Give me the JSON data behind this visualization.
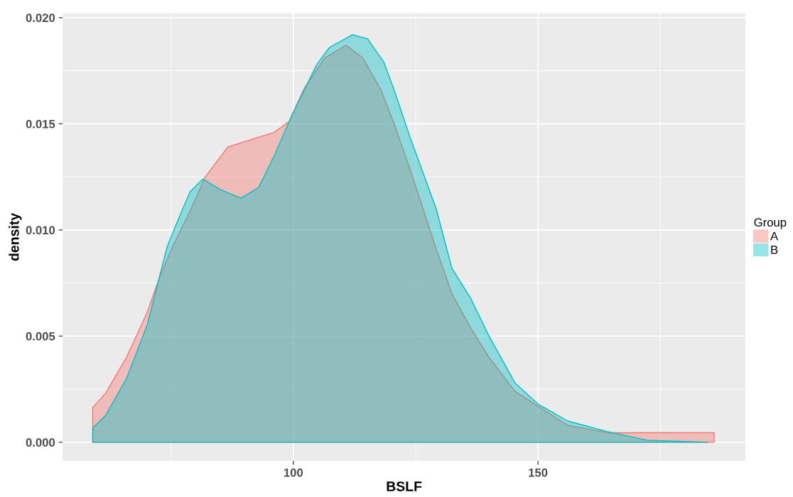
{
  "chart_data": {
    "type": "area",
    "xlabel": "BSLF",
    "ylabel": "density",
    "legend_title": "Group",
    "legend": "right",
    "grid": true,
    "xlim": [
      52.85,
      192.4
    ],
    "ylim": [
      -0.00087,
      0.0202
    ],
    "xticks": [
      100,
      150
    ],
    "yticks": [
      {
        "value": 0,
        "label": "0.000"
      },
      {
        "value": 0.005,
        "label": "0.005"
      },
      {
        "value": 0.01,
        "label": "0.010"
      },
      {
        "value": 0.015,
        "label": "0.015"
      },
      {
        "value": 0.02,
        "label": "0.020"
      }
    ],
    "series": [
      {
        "name": "A",
        "color": "#f8766d",
        "x": [
          59,
          61.6,
          65.9,
          70.1,
          72.7,
          75.3,
          78.9,
          82.0,
          86.6,
          91.9,
          96.1,
          99.1,
          102.3,
          106.4,
          110.8,
          114.2,
          117.9,
          120.6,
          123.8,
          129.2,
          132.4,
          136.2,
          140.0,
          145.3,
          150,
          156.1,
          164.2,
          175,
          186
        ],
        "values": [
          0.00164,
          0.0023,
          0.004,
          0.0061,
          0.0078,
          0.0092,
          0.0109,
          0.0125,
          0.0139,
          0.0143,
          0.0146,
          0.0151,
          0.0167,
          0.0181,
          0.0187,
          0.0181,
          0.0166,
          0.015,
          0.0129,
          0.0091,
          0.007,
          0.0054,
          0.004,
          0.0024,
          0.0017,
          0.0008,
          0.00045,
          0.00045,
          0.00045
        ]
      },
      {
        "name": "B",
        "color": "#00bfc4",
        "x": [
          59,
          61.6,
          65.9,
          70.1,
          73.2,
          74.2,
          76.3,
          78.9,
          81.5,
          85.1,
          89.3,
          92.9,
          96.1,
          99.7,
          104.8,
          107.4,
          112.1,
          115.2,
          118.5,
          120.6,
          123.8,
          129.2,
          132.4,
          136.2,
          140.0,
          145.3,
          150,
          156.1,
          164.2,
          172.2,
          184.7
        ],
        "values": [
          0.00067,
          0.00125,
          0.003,
          0.0055,
          0.0083,
          0.0092,
          0.0104,
          0.0118,
          0.0124,
          0.0119,
          0.0115,
          0.012,
          0.0135,
          0.0154,
          0.0178,
          0.0186,
          0.0192,
          0.019,
          0.0179,
          0.0166,
          0.0144,
          0.011,
          0.0082,
          0.0068,
          0.005,
          0.0028,
          0.0018,
          0.001,
          0.0005,
          0.0001,
          0
        ]
      }
    ]
  }
}
